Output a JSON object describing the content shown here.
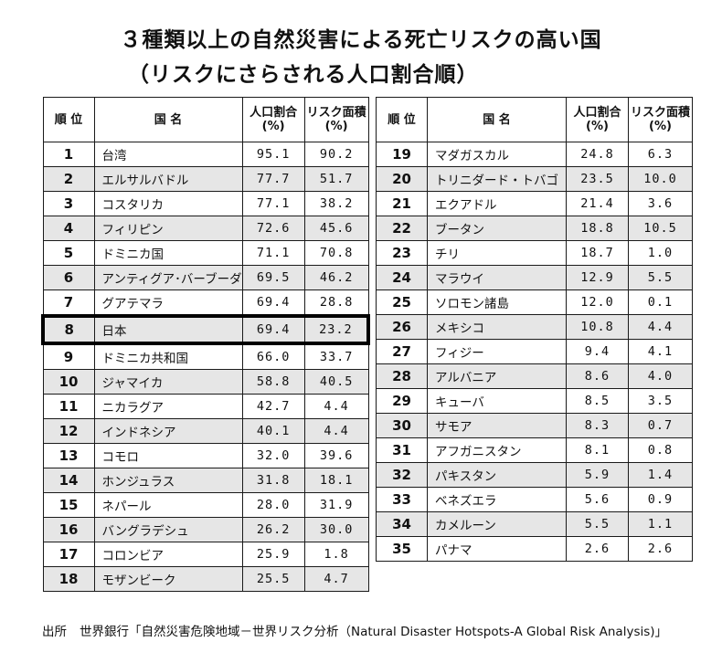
{
  "title_line1": "３種類以上の自然災害による死亡リスクの高い国",
  "title_line2": "（リスクにさらされる人口割合順）",
  "headers": {
    "rank": "順 位",
    "country": "国 名",
    "pop_share": "人口割合\n(%)",
    "area_share": "リスク面積\n(%)"
  },
  "table_left": [
    {
      "rank": "1",
      "country": "台湾",
      "pop": "95.1",
      "area": "90.2"
    },
    {
      "rank": "2",
      "country": "エルサルバドル",
      "pop": "77.7",
      "area": "51.7"
    },
    {
      "rank": "3",
      "country": "コスタリカ",
      "pop": "77.1",
      "area": "38.2"
    },
    {
      "rank": "4",
      "country": "フィリピン",
      "pop": "72.6",
      "area": "45.6"
    },
    {
      "rank": "5",
      "country": "ドミニカ国",
      "pop": "71.1",
      "area": "70.8"
    },
    {
      "rank": "6",
      "country": "アンティグア･バーブーダ",
      "pop": "69.5",
      "area": "46.2"
    },
    {
      "rank": "7",
      "country": "グアテマラ",
      "pop": "69.4",
      "area": "28.8"
    },
    {
      "rank": "8",
      "country": "日本",
      "pop": "69.4",
      "area": "23.2"
    },
    {
      "rank": "9",
      "country": "ドミニカ共和国",
      "pop": "66.0",
      "area": "33.7"
    },
    {
      "rank": "10",
      "country": "ジャマイカ",
      "pop": "58.8",
      "area": "40.5"
    },
    {
      "rank": "11",
      "country": "ニカラグア",
      "pop": "42.7",
      "area": "4.4"
    },
    {
      "rank": "12",
      "country": "インドネシア",
      "pop": "40.1",
      "area": "4.4"
    },
    {
      "rank": "13",
      "country": "コモロ",
      "pop": "32.0",
      "area": "39.6"
    },
    {
      "rank": "14",
      "country": "ホンジュラス",
      "pop": "31.8",
      "area": "18.1"
    },
    {
      "rank": "15",
      "country": "ネパール",
      "pop": "28.0",
      "area": "31.9"
    },
    {
      "rank": "16",
      "country": "バングラデシュ",
      "pop": "26.2",
      "area": "30.0"
    },
    {
      "rank": "17",
      "country": "コロンビア",
      "pop": "25.9",
      "area": "1.8"
    },
    {
      "rank": "18",
      "country": "モザンビーク",
      "pop": "25.5",
      "area": "4.7"
    }
  ],
  "table_right": [
    {
      "rank": "19",
      "country": "マダガスカル",
      "pop": "24.8",
      "area": "6.3"
    },
    {
      "rank": "20",
      "country": "トリニダード・トバゴ",
      "pop": "23.5",
      "area": "10.0"
    },
    {
      "rank": "21",
      "country": "エクアドル",
      "pop": "21.4",
      "area": "3.6"
    },
    {
      "rank": "22",
      "country": "ブータン",
      "pop": "18.8",
      "area": "10.5"
    },
    {
      "rank": "23",
      "country": "チリ",
      "pop": "18.7",
      "area": "1.0"
    },
    {
      "rank": "24",
      "country": "マラウイ",
      "pop": "12.9",
      "area": "5.5"
    },
    {
      "rank": "25",
      "country": "ソロモン諸島",
      "pop": "12.0",
      "area": "0.1"
    },
    {
      "rank": "26",
      "country": "メキシコ",
      "pop": "10.8",
      "area": "4.4"
    },
    {
      "rank": "27",
      "country": "フィジー",
      "pop": "9.4",
      "area": "4.1"
    },
    {
      "rank": "28",
      "country": "アルバニア",
      "pop": "8.6",
      "area": "4.0"
    },
    {
      "rank": "29",
      "country": "キューバ",
      "pop": "8.5",
      "area": "3.5"
    },
    {
      "rank": "30",
      "country": "サモア",
      "pop": "8.3",
      "area": "0.7"
    },
    {
      "rank": "31",
      "country": "アフガニスタン",
      "pop": "8.1",
      "area": "0.8"
    },
    {
      "rank": "32",
      "country": "パキスタン",
      "pop": "5.9",
      "area": "1.4"
    },
    {
      "rank": "33",
      "country": "ベネズエラ",
      "pop": "5.6",
      "area": "0.9"
    },
    {
      "rank": "34",
      "country": "カメルーン",
      "pop": "5.5",
      "area": "1.1"
    },
    {
      "rank": "35",
      "country": "パナマ",
      "pop": "2.6",
      "area": "2.6"
    }
  ],
  "highlighted_rank": "8",
  "source_label": "出所",
  "source_text": "世界銀行「自然災害危険地域－世界リスク分析（Natural Disaster Hotspots-A Global Risk Analysis)」",
  "colors": {
    "row_shade": "#e6e6e6",
    "border": "#1a1a1a"
  }
}
